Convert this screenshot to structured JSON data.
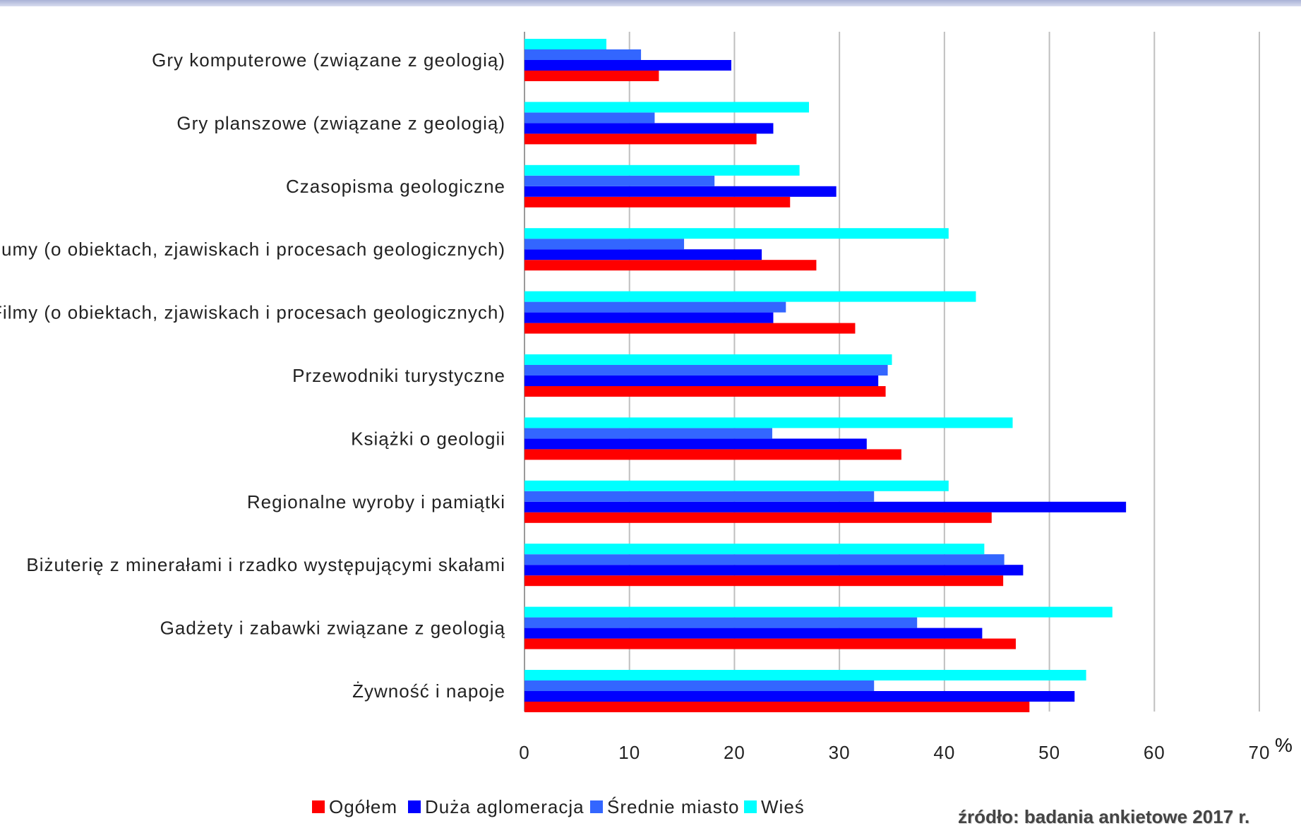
{
  "chart_data": {
    "type": "bar",
    "orientation": "horizontal",
    "unit": "%",
    "xlim": [
      0,
      70
    ],
    "ticks": [
      "0",
      "10",
      "20",
      "30",
      "40",
      "50",
      "60",
      "70"
    ],
    "grid": "vertical",
    "legend_position": "bottom",
    "categories": [
      "Gry komputerowe (związane z geologią)",
      "Gry planszowe (związane z geologią)",
      "Czasopisma geologiczne",
      "Albumy (o obiektach, zjawiskach i procesach geologicznych)",
      "Filmy (o obiektach, zjawiskach i procesach geologicznych)",
      "Przewodniki turystyczne",
      "Książki o geologii",
      "Regionalne wyroby i pamiątki",
      "Biżuterię z minerałami i rzadko występującymi skałami",
      "Gadżety i zabawki związane z geologią",
      "Żywność i napoje"
    ],
    "series": [
      {
        "name": "Ogółem",
        "color": "#ff0000",
        "values": [
          12.8,
          22.1,
          25.3,
          27.8,
          31.5,
          34.4,
          35.9,
          44.5,
          45.6,
          46.8,
          48.1
        ]
      },
      {
        "name": "Duża aglomeracja",
        "color": "#0000ff",
        "values": [
          19.7,
          23.7,
          29.7,
          22.6,
          23.7,
          33.7,
          32.6,
          57.3,
          47.5,
          43.6,
          52.4
        ]
      },
      {
        "name": "Średnie miasto",
        "color": "#3366ff",
        "values": [
          11.1,
          12.4,
          18.1,
          15.2,
          24.9,
          34.6,
          23.6,
          33.3,
          45.7,
          37.4,
          33.3
        ]
      },
      {
        "name": "Wieś",
        "color": "#00ffff",
        "values": [
          7.8,
          27.1,
          26.2,
          40.4,
          43.0,
          35.0,
          46.5,
          40.4,
          43.8,
          56.0,
          53.5
        ]
      }
    ]
  },
  "source_note": "źródło: badania ankietowe 2017 r."
}
